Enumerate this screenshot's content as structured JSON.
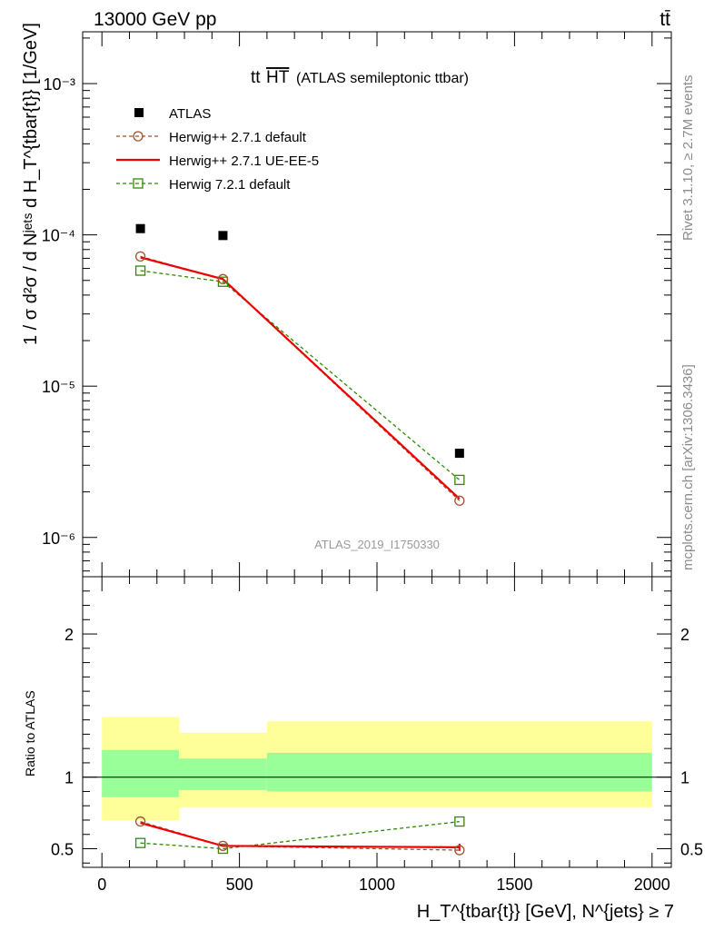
{
  "header": {
    "energy_label": "13000 GeV pp",
    "process_label": "tt̄",
    "analysis_title": "tt",
    "analysis_title_over": "HT",
    "analysis_subtitle": "(ATLAS semileptonic ttbar)",
    "analysis_id": "ATLAS_2019_I1750330",
    "side_label_top": "Rivet 3.1.10, ≥ 2.7M events",
    "side_label_bottom": "mcplots.cern.ch [arXiv:1306.3436]"
  },
  "axes": {
    "ylabel_main": "1 / σ d²σ / d Nʲᵉᵗˢ d H_T^{tbar{t}} [1/GeV]",
    "ylabel_ratio": "Ratio to ATLAS",
    "xlabel": "H_T^{tbar{t}} [GeV], N^{jets} ≥ 7",
    "main_yticks": [
      "10⁻³",
      "10⁻⁴",
      "10⁻⁵",
      "10⁻⁶"
    ],
    "ratio_yticks": [
      "2",
      "1",
      "0.5"
    ],
    "xticks": [
      "0",
      "500",
      "1000",
      "1500",
      "2000"
    ]
  },
  "chart_data": {
    "type": "scatter",
    "main": {
      "yscale": "log",
      "xlim": [
        -70,
        2070
      ],
      "ylim": [
        5.5e-07,
        0.0022
      ],
      "series": [
        {
          "name": "ATLAS",
          "style": "marker-square-filled",
          "color": "#000000",
          "x": [
            140,
            440,
            1300
          ],
          "y": [
            0.00011,
            9.9e-05,
            3.6e-06
          ]
        },
        {
          "name": "Herwig++ 2.7.1 default",
          "style": "dashed-open-circle",
          "color": "#a0522d",
          "x": [
            140,
            440,
            1300
          ],
          "y": [
            7.2e-05,
            5.1e-05,
            1.75e-06
          ]
        },
        {
          "name": "Herwig++ 2.7.1 UE-EE-5",
          "style": "solid",
          "color": "#ee0000",
          "x": [
            140,
            440,
            1300
          ],
          "y": [
            7.1e-05,
            5.1e-05,
            1.8e-06
          ]
        },
        {
          "name": "Herwig 7.2.1 default",
          "style": "dashed-open-square",
          "color": "#2e8b00",
          "x": [
            140,
            440,
            1300
          ],
          "y": [
            5.8e-05,
            4.9e-05,
            2.4e-06
          ]
        }
      ]
    },
    "ratio": {
      "ylim": [
        0.37,
        2.4
      ],
      "reference": 1.0,
      "bands": [
        {
          "x0": 0,
          "x1": 280,
          "inner": [
            0.86,
            1.19
          ],
          "outer": [
            0.7,
            1.42
          ]
        },
        {
          "x0": 280,
          "x1": 600,
          "inner": [
            0.91,
            1.13
          ],
          "outer": [
            0.79,
            1.31
          ]
        },
        {
          "x0": 600,
          "x1": 2000,
          "inner": [
            0.9,
            1.17
          ],
          "outer": [
            0.79,
            1.39
          ]
        }
      ],
      "series": [
        {
          "name": "Herwig++ 2.7.1 default",
          "x": [
            140,
            440,
            1300
          ],
          "y": [
            0.69,
            0.52,
            0.49
          ]
        },
        {
          "name": "Herwig++ 2.7.1 UE-EE-5",
          "x": [
            140,
            440,
            1300
          ],
          "y": [
            0.68,
            0.52,
            0.51
          ],
          "yerr": [
            0.0,
            0.0,
            0.025
          ]
        },
        {
          "name": "Herwig 7.2.1 default",
          "x": [
            140,
            440,
            1300
          ],
          "y": [
            0.54,
            0.5,
            0.69
          ]
        }
      ]
    },
    "colors": {
      "band_inner": "#99ff99",
      "band_outer": "#ffff99"
    }
  }
}
